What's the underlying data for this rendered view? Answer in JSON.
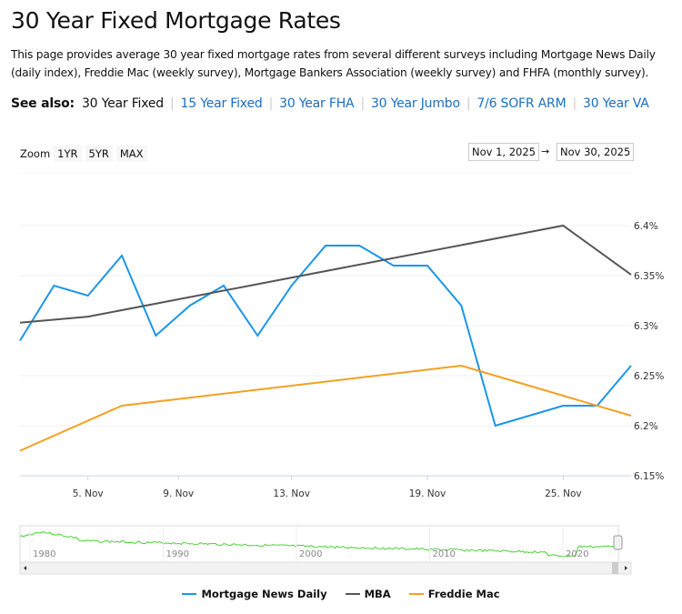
{
  "page": {
    "title": "30 Year Fixed Mortgage Rates",
    "intro": "This page provides average 30 year fixed mortgage rates from several different surveys including Mortgage News Daily (daily index), Freddie Mac (weekly survey), Mortgage Bankers Association (weekly survey) and FHFA (monthly survey).",
    "see_also_label": "See also:",
    "see_also": [
      {
        "label": "30 Year Fixed",
        "current": true
      },
      {
        "label": "15 Year Fixed"
      },
      {
        "label": "30 Year FHA"
      },
      {
        "label": "30 Year Jumbo"
      },
      {
        "label": "7/6 SOFR ARM"
      },
      {
        "label": "30 Year VA"
      }
    ]
  },
  "controls": {
    "zoom_label": "Zoom",
    "zoom_buttons": [
      "1YR",
      "5YR",
      "MAX"
    ],
    "range_from": "Nov 1, 2025",
    "range_arrow": "→",
    "range_to": "Nov 30, 2025"
  },
  "chart_data": {
    "type": "line",
    "ylim": [
      6.15,
      6.4
    ],
    "yticks": [
      "6.15%",
      "6.2%",
      "6.25%",
      "6.3%",
      "6.35%",
      "6.4%"
    ],
    "ytick_values": [
      6.15,
      6.2,
      6.25,
      6.3,
      6.35,
      6.4
    ],
    "xticks": [
      {
        "label": "5. Nov",
        "date": "2025-11-05"
      },
      {
        "label": "9. Nov",
        "date": "2025-11-09"
      },
      {
        "label": "13. Nov",
        "date": "2025-11-13"
      },
      {
        "label": "19. Nov",
        "date": "2025-11-19"
      },
      {
        "label": "25. Nov",
        "date": "2025-11-25"
      }
    ],
    "grid": true,
    "legend_position": "bottom",
    "series": [
      {
        "name": "Mortgage News Daily",
        "color": "#1a96e8",
        "points": [
          [
            "2025-11-03",
            6.285
          ],
          [
            "2025-11-04",
            6.34
          ],
          [
            "2025-11-05",
            6.33
          ],
          [
            "2025-11-06",
            6.37
          ],
          [
            "2025-11-07",
            6.29
          ],
          [
            "2025-11-10",
            6.32
          ],
          [
            "2025-11-11",
            6.34
          ],
          [
            "2025-11-12",
            6.29
          ],
          [
            "2025-11-13",
            6.34
          ],
          [
            "2025-11-14",
            6.38
          ],
          [
            "2025-11-17",
            6.38
          ],
          [
            "2025-11-18",
            6.36
          ],
          [
            "2025-11-19",
            6.36
          ],
          [
            "2025-11-20",
            6.32
          ],
          [
            "2025-11-21",
            6.2
          ],
          [
            "2025-11-24",
            6.21
          ],
          [
            "2025-11-25",
            6.22
          ],
          [
            "2025-11-26",
            6.22
          ],
          [
            "2025-11-28",
            6.26
          ]
        ]
      },
      {
        "name": "MBA",
        "color": "#555555",
        "points": [
          [
            "2025-11-03",
            6.303
          ],
          [
            "2025-11-05",
            6.309
          ],
          [
            "2025-11-25",
            6.4
          ],
          [
            "2025-11-28",
            6.351
          ]
        ]
      },
      {
        "name": "Freddie Mac",
        "color": "#f5a021",
        "points": [
          [
            "2025-11-03",
            6.175
          ],
          [
            "2025-11-06",
            6.22
          ],
          [
            "2025-11-20",
            6.26
          ],
          [
            "2025-11-25",
            6.23
          ],
          [
            "2025-11-28",
            6.21
          ]
        ]
      }
    ],
    "navigator": {
      "color": "#4cd137",
      "xticks": [
        "1980",
        "1990",
        "2000",
        "2010",
        "2020"
      ]
    }
  }
}
